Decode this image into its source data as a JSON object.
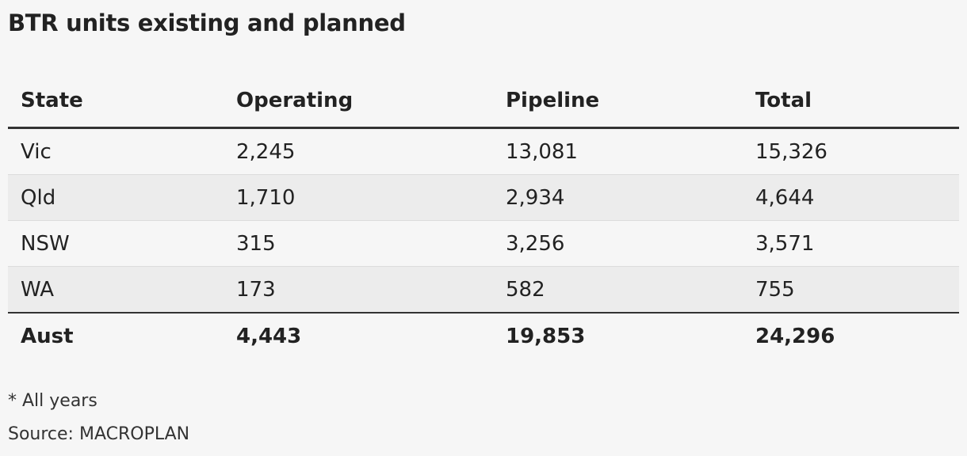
{
  "title": "BTR units existing and planned",
  "chart_data": {
    "type": "table",
    "title": "BTR units existing and planned",
    "columns": [
      "State",
      "Operating",
      "Pipeline",
      "Total"
    ],
    "rows": [
      [
        "Vic",
        "2,245",
        "13,081",
        "15,326"
      ],
      [
        "Qld",
        "1,710",
        "2,934",
        "4,644"
      ],
      [
        "NSW",
        "315",
        "3,256",
        "3,571"
      ],
      [
        "WA",
        "173",
        "582",
        "755"
      ]
    ],
    "total_row": [
      "Aust",
      "4,443",
      "19,853",
      "24,296"
    ]
  },
  "footnote": "* All years",
  "source": "Source: MACROPLAN"
}
